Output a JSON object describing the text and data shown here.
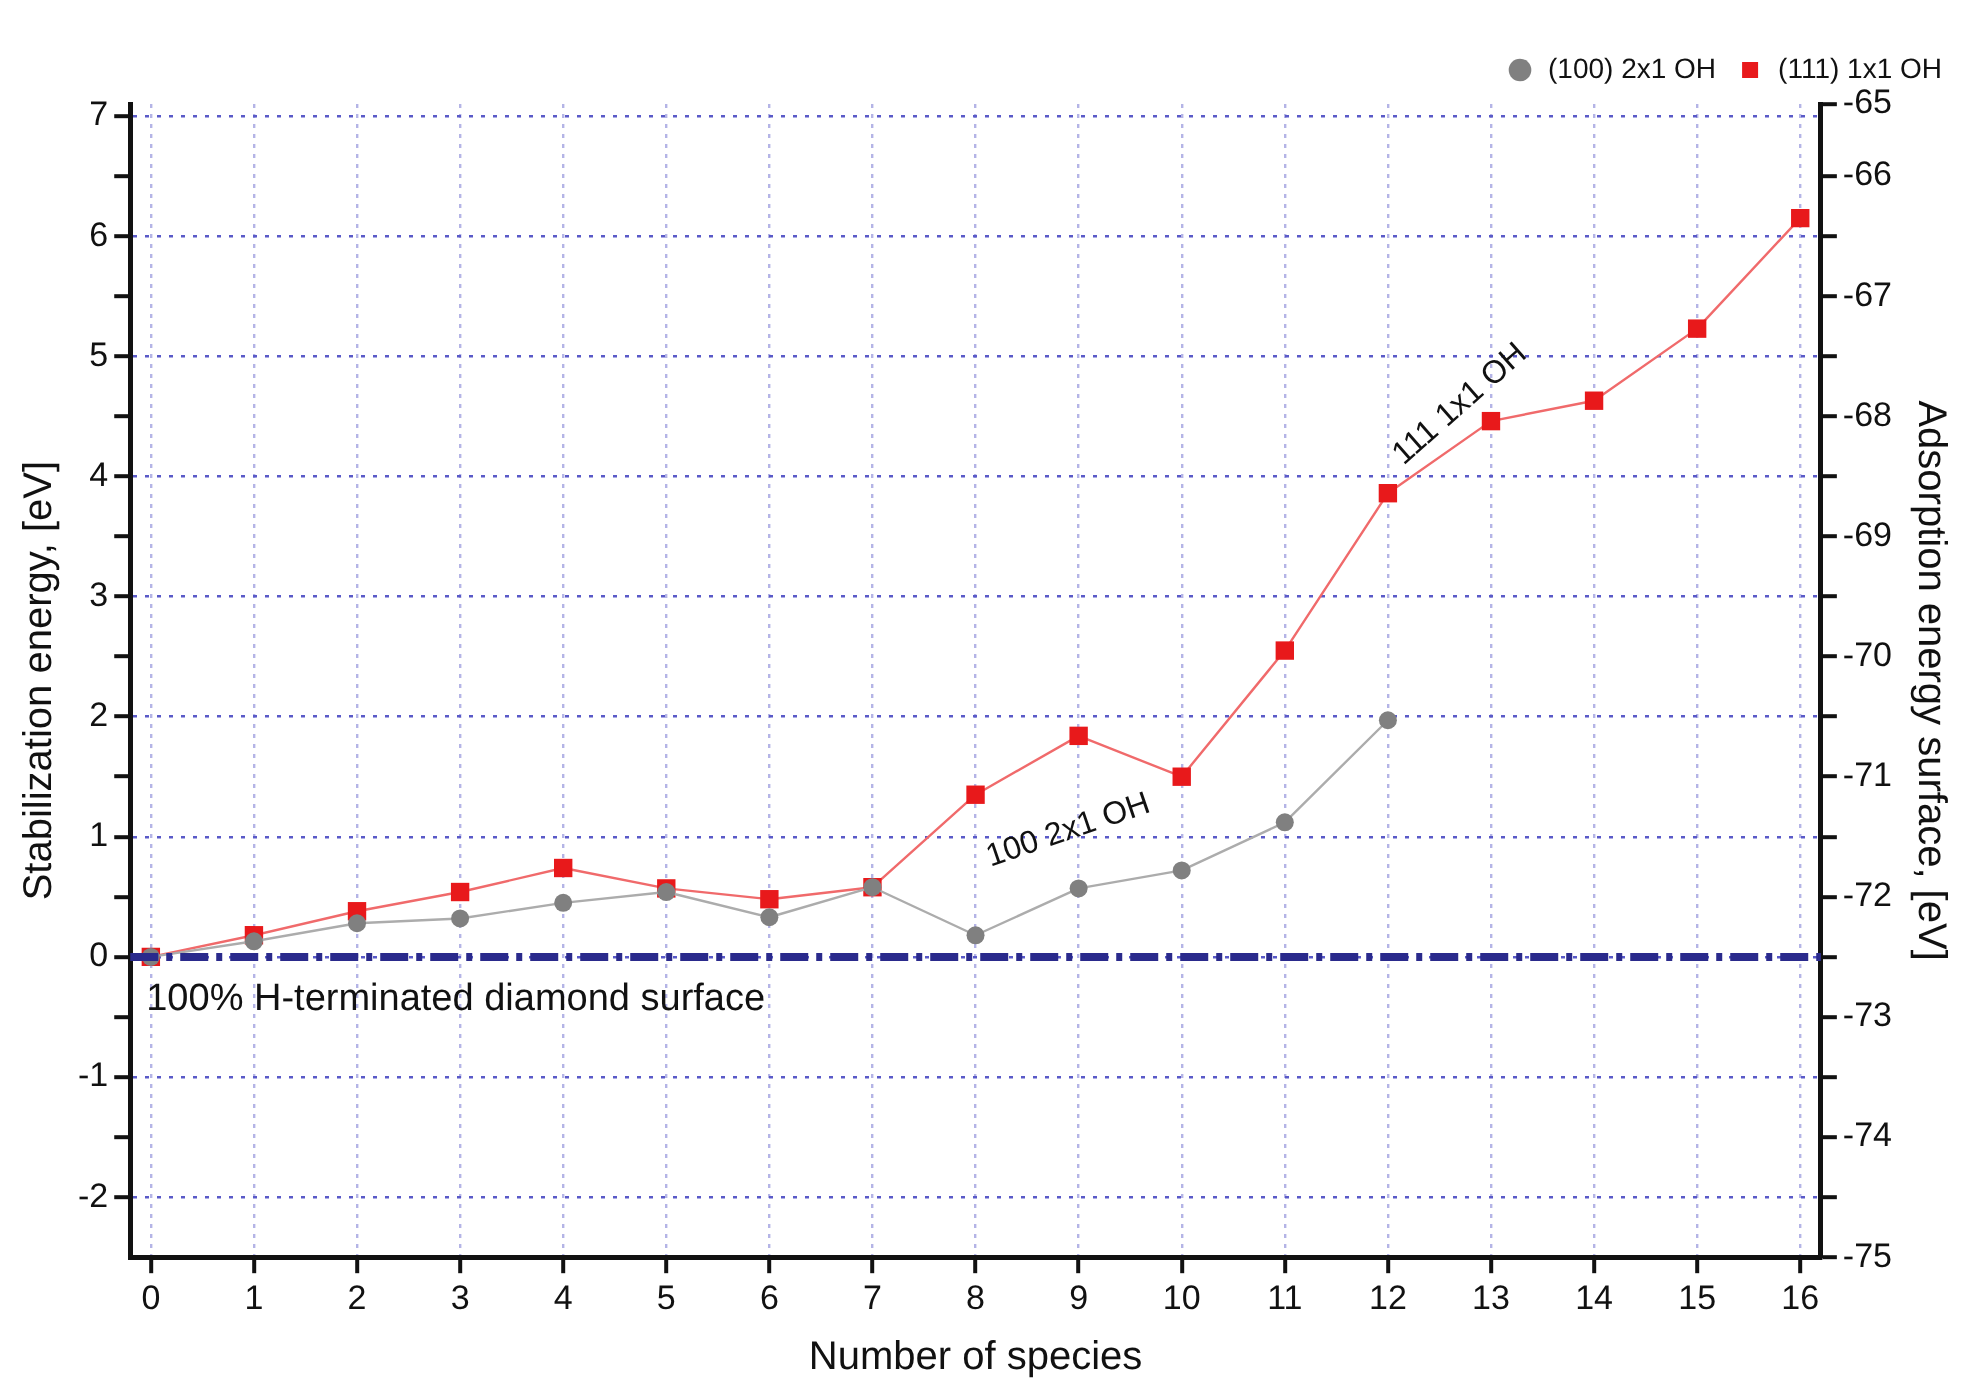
{
  "chart_data": {
    "type": "line",
    "xlabel": "Number of species",
    "ylabel": "Stabilization energy, [eV]",
    "y2label": "Adsorption energy surface, [eV]",
    "x": [
      0,
      1,
      2,
      3,
      4,
      5,
      6,
      7,
      8,
      9,
      10,
      11,
      12,
      13,
      14,
      15,
      16
    ],
    "series": [
      {
        "name": "(111) 1x1 OH",
        "color": "#e8191b",
        "marker": "square",
        "values": [
          0,
          0.18,
          0.38,
          0.54,
          0.74,
          0.57,
          0.48,
          0.58,
          1.35,
          1.84,
          1.5,
          2.55,
          3.86,
          4.46,
          4.63,
          5.23,
          6.15
        ]
      },
      {
        "name": "(100) 2x1 OH",
        "color": "#808080",
        "marker": "circle",
        "values": [
          0,
          0.13,
          0.28,
          0.32,
          0.45,
          0.54,
          0.33,
          0.58,
          0.18,
          0.57,
          0.72,
          1.12,
          1.97,
          null,
          null,
          null,
          null
        ]
      }
    ],
    "xlim": [
      -0.2,
      16.2
    ],
    "xticks": [
      0,
      1,
      2,
      3,
      4,
      5,
      6,
      7,
      8,
      9,
      10,
      11,
      12,
      13,
      14,
      15,
      16
    ],
    "ylim": [
      -2.5,
      7.1
    ],
    "yticks": [
      -2,
      {
        "value": -1.5,
        "label": null
      },
      -1,
      {
        "value": -0.5,
        "label": null
      },
      0,
      {
        "value": 0.5,
        "label": null
      },
      1,
      {
        "value": 1.5,
        "label": null
      },
      2,
      {
        "value": 2.5,
        "label": null
      },
      3,
      {
        "value": 3.5,
        "label": null
      },
      4,
      {
        "value": 4.5,
        "label": null
      },
      5,
      {
        "value": 5.5,
        "label": null
      },
      6,
      {
        "value": 6.5,
        "label": null
      },
      7
    ],
    "y2lim": [
      -75,
      -65.4
    ],
    "y2ticks": [
      -75,
      {
        "value": -74.5,
        "label": null
      },
      -74,
      {
        "value": -73.5,
        "label": null
      },
      -73,
      {
        "value": -72.5,
        "label": null
      },
      -72,
      {
        "value": -71.5,
        "label": null
      },
      -71,
      {
        "value": -70.5,
        "label": null
      },
      -70,
      {
        "value": -69.5,
        "label": null
      },
      -69,
      {
        "value": -68.5,
        "label": null
      },
      -68,
      {
        "value": -67.5,
        "label": null
      },
      -67,
      {
        "value": -66.5,
        "label": null
      },
      -66,
      {
        "value": -65.4,
        "label": "-65"
      }
    ],
    "ref_lines": [
      {
        "axis": "y",
        "value": 0,
        "label": "100% H-terminated diamond surface",
        "color": "#2a2a8c",
        "line_style": "dashdot"
      }
    ],
    "annotations": [
      "111 1x1 OH",
      "100 2x1 OH"
    ],
    "grid": true,
    "legend": "top right",
    "line_style": "solid"
  }
}
